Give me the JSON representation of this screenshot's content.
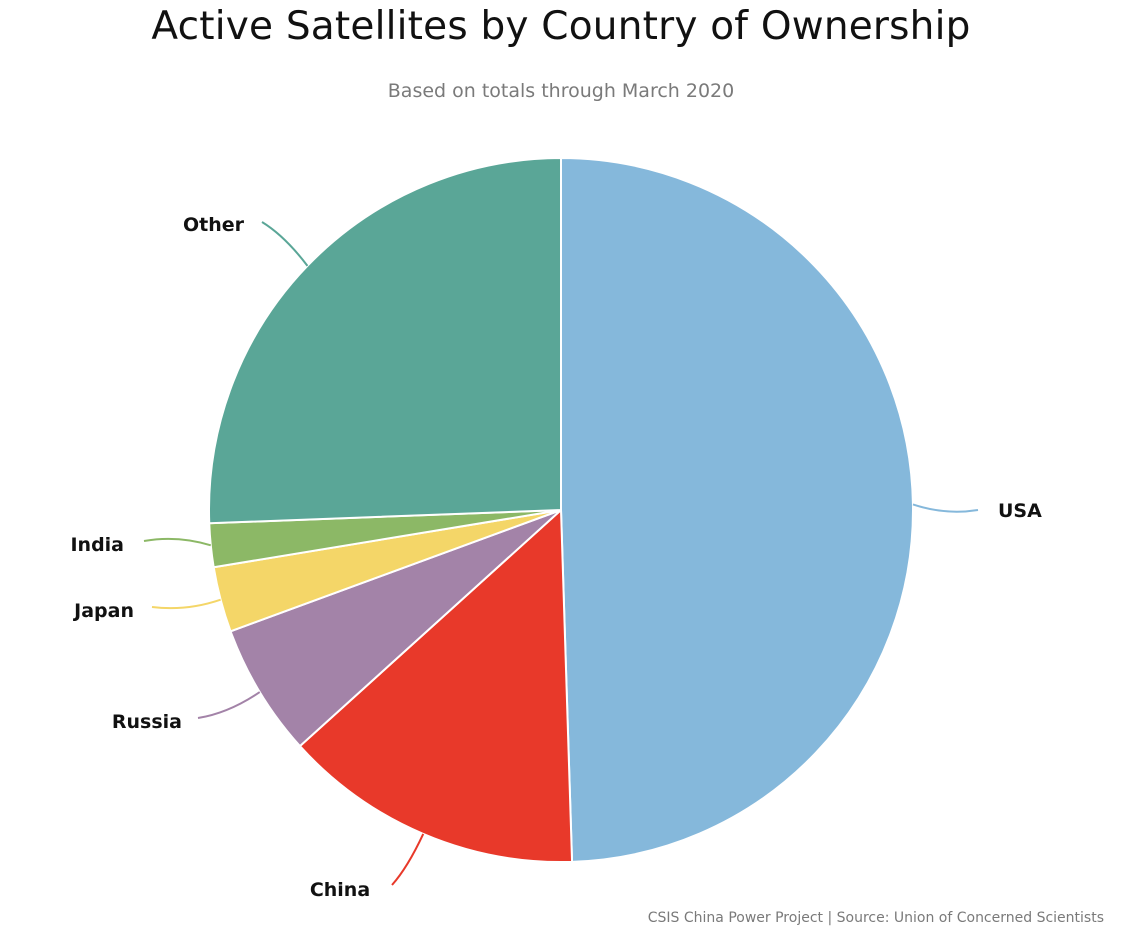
{
  "chart_data": {
    "type": "pie",
    "title": "Active Satellites by Country of Ownership",
    "subtitle": "Based on totals through March 2020",
    "source": "CSIS China Power Project | Source: Union of Concerned Scientists",
    "categories": [
      "USA",
      "China",
      "Russia",
      "Japan",
      "India",
      "Other"
    ],
    "values": [
      49.5,
      13.8,
      6.1,
      3.0,
      2.0,
      25.6
    ],
    "colors": [
      "#85b8db",
      "#e8392a",
      "#a383a8",
      "#f4d668",
      "#8cb866",
      "#5aa697"
    ],
    "start_angle_deg": 0,
    "direction": "clockwise",
    "legend": "none"
  }
}
